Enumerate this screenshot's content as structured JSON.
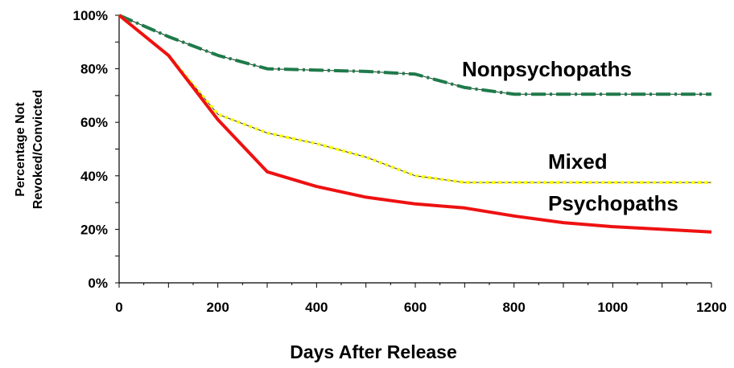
{
  "chart_data": {
    "type": "line",
    "xlabel": "Days After Release",
    "ylabel_lines": [
      "Percentage Not",
      "Revoked/Convicted"
    ],
    "xlim": [
      0,
      1200
    ],
    "ylim": [
      0,
      100
    ],
    "x_ticks": [
      "0",
      "200",
      "400",
      "600",
      "800",
      "1000",
      "1200"
    ],
    "y_ticks": [
      "0%",
      "20%",
      "40%",
      "60%",
      "80%",
      "100%"
    ],
    "grid": false,
    "x": [
      0,
      100,
      200,
      300,
      400,
      500,
      600,
      700,
      800,
      900,
      1000,
      1100,
      1200
    ],
    "series": [
      {
        "name": "Nonpsychopaths",
        "color": "#1f7a4a",
        "style": "dash-dot",
        "values": [
          100,
          92,
          85,
          80,
          79.5,
          79,
          78,
          73,
          70.5,
          70.5,
          70.5,
          70.5,
          70.5
        ]
      },
      {
        "name": "Mixed",
        "color": "#ffff00",
        "style": "dotted",
        "values": [
          100,
          85,
          63,
          56,
          52,
          47,
          40,
          37.5,
          37.5,
          37.5,
          37.5,
          37.5,
          37.5
        ]
      },
      {
        "name": "Psychopaths",
        "color": "#ee1111",
        "style": "solid",
        "values": [
          100,
          85,
          61,
          41.5,
          36,
          32,
          29.5,
          28,
          25,
          22.5,
          21,
          20,
          19
        ]
      }
    ]
  }
}
